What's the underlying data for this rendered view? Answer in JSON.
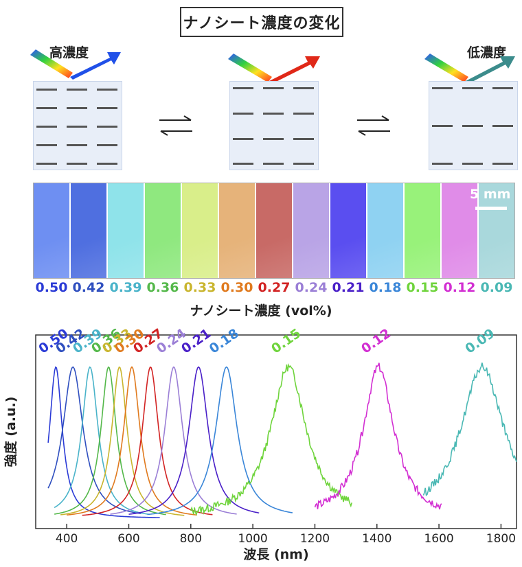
{
  "title": "ナノシート濃度の変化",
  "states": {
    "high": "高濃度",
    "low": "低濃度"
  },
  "scalebar_label": "5 mm",
  "concentration_axis_label": "ナノシート濃度 (vol%)",
  "concentrations": [
    {
      "label": "0.50",
      "color": "#2b3bd6",
      "swatch": "#6e8ff2"
    },
    {
      "label": "0.42",
      "color": "#2f4fbf",
      "swatch": "#4f6fe0"
    },
    {
      "label": "0.39",
      "color": "#49b3c9",
      "swatch": "#8fe3ea"
    },
    {
      "label": "0.36",
      "color": "#54b84a",
      "swatch": "#8fe87f"
    },
    {
      "label": "0.33",
      "color": "#c9b52e",
      "swatch": "#d9ee8a"
    },
    {
      "label": "0.30",
      "color": "#e07a1e",
      "swatch": "#e6b37a"
    },
    {
      "label": "0.27",
      "color": "#d22424",
      "swatch": "#c86a66"
    },
    {
      "label": "0.24",
      "color": "#9b7fd6",
      "swatch": "#b9a4e6"
    },
    {
      "label": "0.21",
      "color": "#4a20c8",
      "swatch": "#5a4ef0"
    },
    {
      "label": "0.18",
      "color": "#3a86d8",
      "swatch": "#8fd2f2"
    },
    {
      "label": "0.15",
      "color": "#6fd43c",
      "swatch": "#98f27a"
    },
    {
      "label": "0.12",
      "color": "#d22ed2",
      "swatch": "#e08ce8"
    },
    {
      "label": "0.09",
      "color": "#4ab8b4",
      "swatch": "#a9d8dc"
    }
  ],
  "chart_data": {
    "type": "line",
    "xlabel": "波長 (nm)",
    "ylabel": "強度 (a.u.)",
    "xlim": [
      300,
      1850
    ],
    "ylim": [
      0,
      1.15
    ],
    "xticks": [
      400,
      600,
      800,
      1000,
      1200,
      1400,
      1600,
      1800
    ],
    "series": [
      {
        "name": "0.50",
        "peak": 365,
        "width": 25,
        "range": [
          340,
          700
        ],
        "color": "#2b3bd6"
      },
      {
        "name": "0.42",
        "peak": 420,
        "width": 40,
        "range": [
          340,
          640
        ],
        "color": "#2f4fbf"
      },
      {
        "name": "0.39",
        "peak": 475,
        "width": 32,
        "range": [
          360,
          670
        ],
        "color": "#49b3c9"
      },
      {
        "name": "0.36",
        "peak": 535,
        "width": 30,
        "range": [
          360,
          720
        ],
        "color": "#54b84a"
      },
      {
        "name": "0.33",
        "peak": 570,
        "width": 30,
        "range": [
          380,
          780
        ],
        "color": "#c9b52e"
      },
      {
        "name": "0.30",
        "peak": 610,
        "width": 32,
        "range": [
          400,
          820
        ],
        "color": "#e07a1e"
      },
      {
        "name": "0.27",
        "peak": 670,
        "width": 32,
        "range": [
          450,
          870
        ],
        "color": "#d22424"
      },
      {
        "name": "0.24",
        "peak": 745,
        "width": 35,
        "range": [
          540,
          950
        ],
        "color": "#9b7fd6"
      },
      {
        "name": "0.21",
        "peak": 825,
        "width": 38,
        "range": [
          600,
          1020
        ],
        "color": "#4a20c8"
      },
      {
        "name": "0.18",
        "peak": 915,
        "width": 42,
        "range": [
          660,
          1130
        ],
        "color": "#3a86d8"
      },
      {
        "name": "0.15",
        "peak": 1115,
        "width": 70,
        "range": [
          800,
          1320
        ],
        "color": "#6fd43c"
      },
      {
        "name": "0.12",
        "peak": 1405,
        "width": 60,
        "range": [
          1200,
          1610
        ],
        "color": "#d22ed2"
      },
      {
        "name": "0.09",
        "peak": 1740,
        "width": 85,
        "range": [
          1550,
          1850
        ],
        "color": "#4ab8b4"
      }
    ]
  }
}
